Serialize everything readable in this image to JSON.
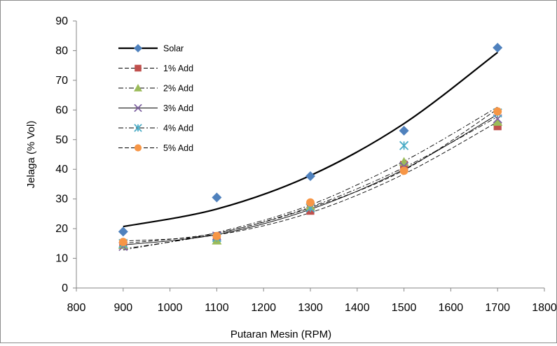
{
  "chart_data": {
    "type": "scatter",
    "title": "",
    "xlabel": "Putaran Mesin (RPM)",
    "ylabel": "Jelaga (% Vol)",
    "xlim": [
      800,
      1800
    ],
    "ylim": [
      0,
      90
    ],
    "xticks": [
      800,
      900,
      1000,
      1100,
      1200,
      1300,
      1400,
      1500,
      1600,
      1700,
      1800
    ],
    "yticks": [
      0,
      10,
      20,
      30,
      40,
      50,
      60,
      70,
      80,
      90
    ],
    "grid": false,
    "legend_position": "top-left",
    "series": [
      {
        "name": "Solar",
        "marker": "diamond",
        "color": "#4f81bd",
        "line": "solid",
        "x": [
          900,
          1100,
          1300,
          1500,
          1700
        ],
        "y": [
          19,
          30.5,
          37.7,
          53,
          81
        ],
        "trend": [
          20.7,
          26.6,
          37.9,
          55.4,
          79.4
        ]
      },
      {
        "name": "1% Add",
        "marker": "square",
        "color": "#c0504d",
        "line": "dashed",
        "x": [
          900,
          1100,
          1300,
          1500,
          1700
        ],
        "y": [
          14.5,
          17.5,
          26,
          41.5,
          54.5
        ],
        "trend": [
          15.8,
          17.9,
          25.4,
          38.4,
          56.0
        ]
      },
      {
        "name": "2% Add",
        "marker": "triangle",
        "color": "#9bbb59",
        "line": "dashdot",
        "x": [
          900,
          1100,
          1300,
          1500,
          1700
        ],
        "y": [
          14.5,
          16,
          27.5,
          42.5,
          56
        ],
        "trend": [
          13.2,
          18.3,
          27.3,
          40.6,
          57.7
        ]
      },
      {
        "name": "3% Add",
        "marker": "x",
        "color": "#8064a2",
        "line": "solid",
        "x": [
          900,
          1100,
          1300,
          1500,
          1700
        ],
        "y": [
          14,
          17.5,
          27,
          41,
          57
        ],
        "trend": [
          14.5,
          18.0,
          26.5,
          40.0,
          58.5
        ]
      },
      {
        "name": "4% Add",
        "marker": "star",
        "color": "#4bacc6",
        "line": "dashdot",
        "x": [
          900,
          1100,
          1300,
          1500,
          1700
        ],
        "y": [
          15,
          17,
          27,
          48,
          59
        ],
        "trend": [
          12.8,
          18.7,
          28.0,
          42.7,
          61.0
        ]
      },
      {
        "name": "5% Add",
        "marker": "circle",
        "color": "#f79646",
        "line": "dashed",
        "x": [
          900,
          1100,
          1300,
          1500,
          1700
        ],
        "y": [
          15.5,
          17.5,
          28.8,
          39.5,
          59.5
        ],
        "trend": [
          15.0,
          18.5,
          27.0,
          39.7,
          60.3
        ]
      }
    ]
  }
}
